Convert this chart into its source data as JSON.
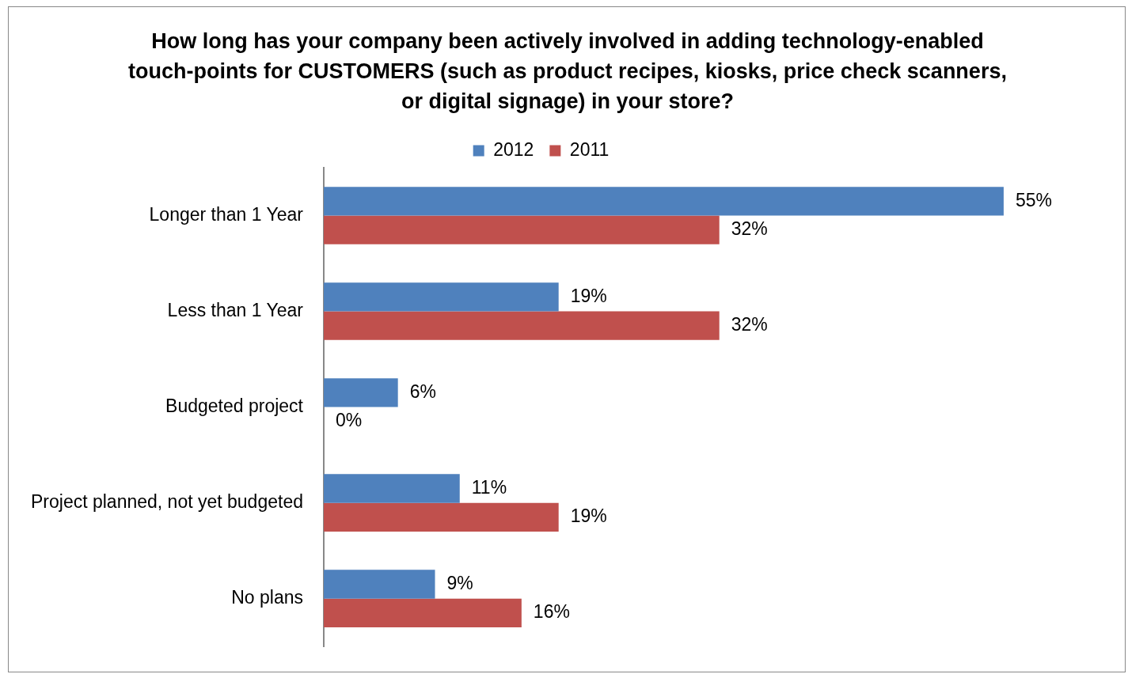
{
  "chart_data": {
    "type": "bar",
    "orientation": "horizontal",
    "title": "How long has your company been actively involved in adding technology-enabled touch-points for CUSTOMERS (such as product recipes, kiosks, price check scanners, or digital signage) in your store?",
    "categories": [
      "Longer than 1 Year",
      "Less than 1 Year",
      "Budgeted project",
      "Project planned, not yet budgeted",
      "No plans"
    ],
    "series": [
      {
        "name": "2012",
        "color": "#4f81bd",
        "values": [
          55,
          19,
          6,
          11,
          9
        ],
        "value_labels": [
          "55%",
          "19%",
          "6%",
          "11%",
          "9%"
        ]
      },
      {
        "name": "2011",
        "color": "#c0504d",
        "values": [
          32,
          32,
          0,
          19,
          16
        ],
        "value_labels": [
          "32%",
          "32%",
          "0%",
          "19%",
          "16%"
        ]
      }
    ],
    "legend": "top",
    "grid": false
  }
}
